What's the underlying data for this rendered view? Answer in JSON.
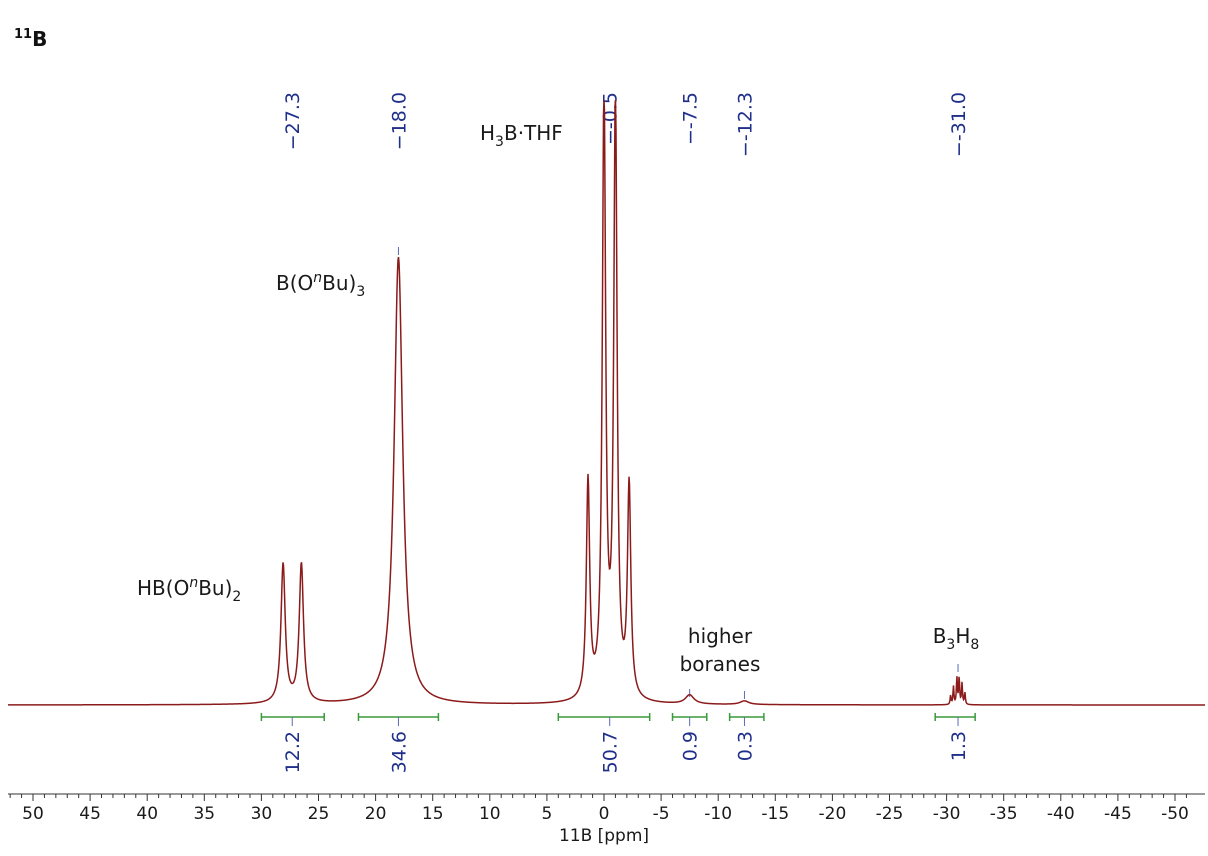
{
  "nucleus": {
    "sup": "11",
    "main": "B"
  },
  "colors": {
    "spectrum": "#8b1a1a",
    "shift_label": "#1f2f8a",
    "integral": "#3a9a3a",
    "axis": "#333333",
    "text": "#1a1a1a"
  },
  "peak_labels": [
    {
      "parts": [
        "H",
        "3",
        "B·THF"
      ],
      "style": [
        "n",
        "sub",
        "n"
      ]
    },
    {
      "parts": [
        "B(O",
        "n",
        "Bu)",
        "3"
      ],
      "style": [
        "n",
        "supi",
        "n",
        "sub"
      ]
    },
    {
      "parts": [
        "HB(O",
        "n",
        "Bu)",
        "2"
      ],
      "style": [
        "n",
        "supi",
        "n",
        "sub"
      ]
    },
    {
      "parts": [
        "higher"
      ],
      "style": [
        "n"
      ]
    },
    {
      "parts": [
        "boranes"
      ],
      "style": [
        "n"
      ]
    },
    {
      "parts": [
        "B",
        "3",
        "H",
        "8"
      ],
      "style": [
        "n",
        "sub",
        "n",
        "sub"
      ]
    }
  ],
  "chart_data": {
    "type": "line",
    "xlabel": "11B [ppm]",
    "xlim": [
      52,
      -52
    ],
    "x_reversed": true,
    "x_ticks": [
      50,
      45,
      40,
      35,
      30,
      25,
      20,
      15,
      10,
      5,
      0,
      -5,
      -10,
      -15,
      -20,
      -25,
      -30,
      -35,
      -40,
      -45,
      -50
    ],
    "x_tick_labels": [
      "50",
      "45",
      "40",
      "35",
      "30",
      "25",
      "20",
      "15",
      "10",
      "5",
      "0",
      "-5",
      "-10",
      "-15",
      "-20",
      "-25",
      "-30",
      "-35",
      "-40",
      "-45",
      "-50"
    ],
    "peak_shift_labels": [
      {
        "ppm": 27.3,
        "label": "−27.3"
      },
      {
        "ppm": 18.0,
        "label": "−18.0"
      },
      {
        "ppm": -0.5,
        "label": "−-0.5"
      },
      {
        "ppm": -7.5,
        "label": "−-7.5"
      },
      {
        "ppm": -12.3,
        "label": "−-12.3"
      },
      {
        "ppm": -31.0,
        "label": "−-31.0"
      }
    ],
    "integrals": [
      {
        "from": 30.0,
        "to": 24.5,
        "center": 27.3,
        "value": "12.2"
      },
      {
        "from": 21.5,
        "to": 14.5,
        "center": 18.0,
        "value": "34.6"
      },
      {
        "from": 4.0,
        "to": -4.0,
        "center": -0.5,
        "value": "50.7"
      },
      {
        "from": -6.0,
        "to": -9.0,
        "center": -7.5,
        "value": "0.9"
      },
      {
        "from": -11.0,
        "to": -14.0,
        "center": -12.3,
        "value": "0.3"
      },
      {
        "from": -29.0,
        "to": -32.5,
        "center": -31.0,
        "value": "1.3"
      }
    ],
    "series": [
      {
        "peaks": [
          {
            "ppm": 28.1,
            "height": 0.23,
            "width": 0.45
          },
          {
            "ppm": 26.5,
            "height": 0.23,
            "width": 0.45
          },
          {
            "ppm": 18.0,
            "height": 0.74,
            "width": 0.9
          },
          {
            "ppm": 1.4,
            "height": 0.36,
            "width": 0.35
          },
          {
            "ppm": 0.0,
            "height": 1.0,
            "width": 0.35
          },
          {
            "ppm": -1.0,
            "height": 0.99,
            "width": 0.35
          },
          {
            "ppm": -2.2,
            "height": 0.35,
            "width": 0.35
          },
          {
            "ppm": -7.5,
            "height": 0.015,
            "width": 0.9
          },
          {
            "ppm": -12.3,
            "height": 0.006,
            "width": 0.9
          },
          {
            "ppm": -30.6,
            "height": 0.03,
            "width": 0.1
          },
          {
            "ppm": -30.9,
            "height": 0.045,
            "width": 0.1
          },
          {
            "ppm": -31.1,
            "height": 0.045,
            "width": 0.1
          },
          {
            "ppm": -31.35,
            "height": 0.035,
            "width": 0.1
          },
          {
            "ppm": -31.6,
            "height": 0.02,
            "width": 0.1
          },
          {
            "ppm": -30.35,
            "height": 0.015,
            "width": 0.1
          }
        ]
      }
    ]
  }
}
